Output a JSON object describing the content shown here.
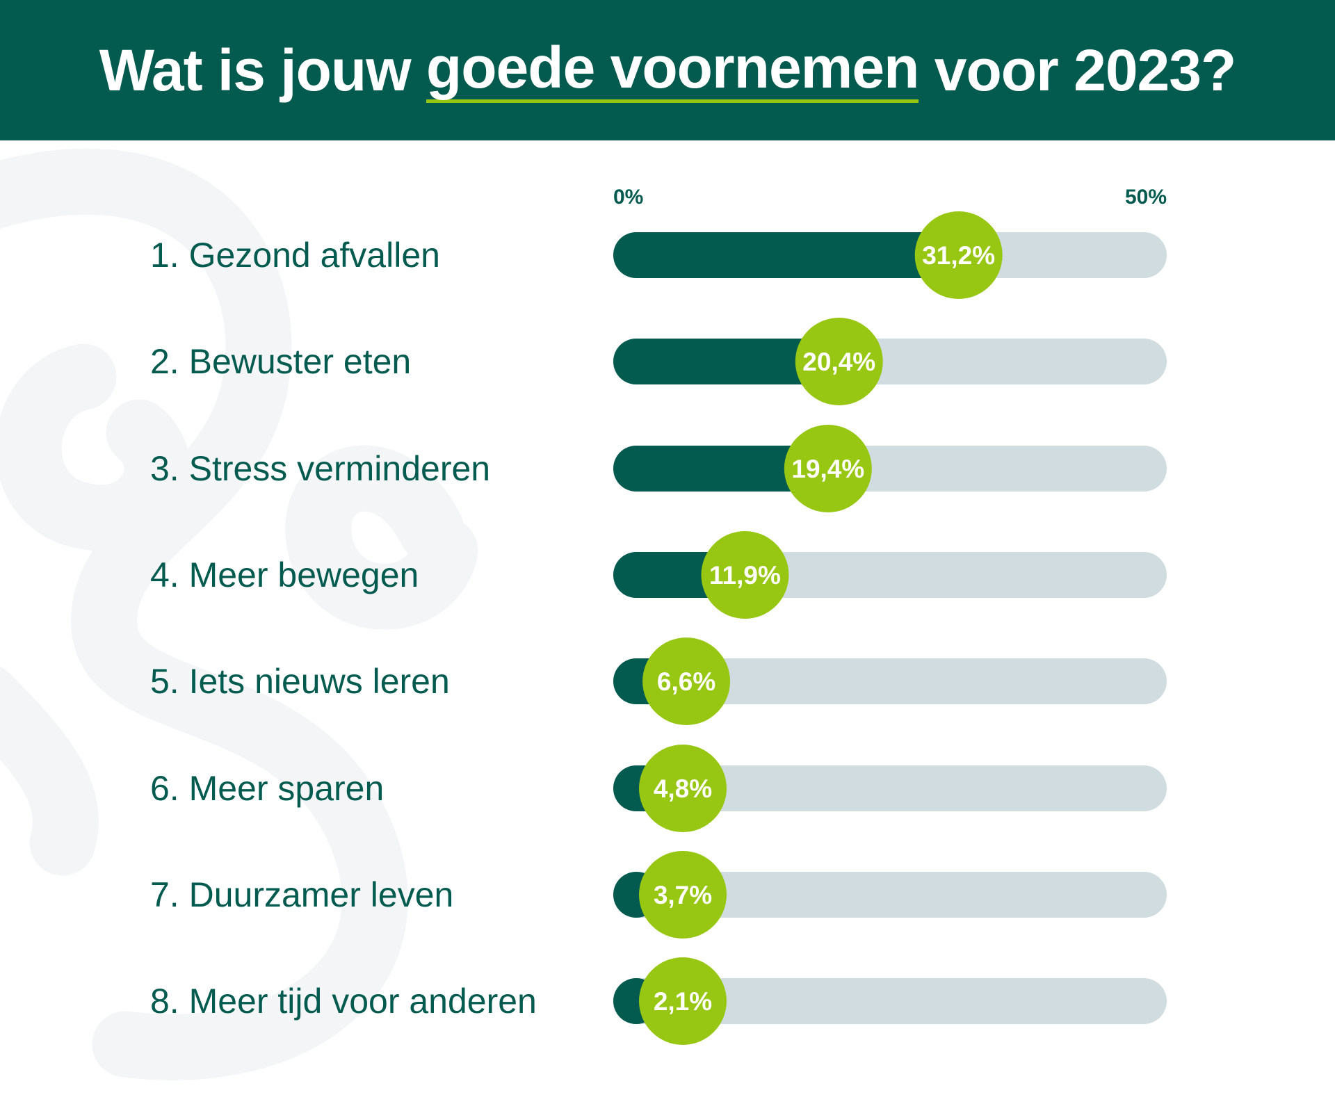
{
  "title": {
    "part1": "Wat is jouw ",
    "highlight": "goede voornemen",
    "part2": " voor 2023?"
  },
  "colors": {
    "header_bg": "#035a4e",
    "bar_fill": "#035a4e",
    "bar_track": "#d0dce0",
    "badge": "#97c713",
    "label_text": "#035a4e",
    "background_decoration": "#f3f5f6"
  },
  "chart_data": {
    "type": "bar",
    "orientation": "horizontal",
    "xlim": [
      0,
      50
    ],
    "axis_tick_labels": [
      "0%",
      "50%"
    ],
    "categories": [
      "1. Gezond afvallen",
      "2. Bewuster eten",
      "3. Stress verminderen",
      "4. Meer bewegen",
      "5. Iets nieuws leren",
      "6. Meer sparen",
      "7. Duurzamer leven",
      "8. Meer tijd voor anderen"
    ],
    "values": [
      31.2,
      20.4,
      19.4,
      11.9,
      6.6,
      4.8,
      3.7,
      2.1
    ],
    "value_labels": [
      "31,2%",
      "20,4%",
      "19,4%",
      "11,9%",
      "6,6%",
      "4,8%",
      "3,7%",
      "2,1%"
    ],
    "grid": false,
    "legend": "none"
  }
}
